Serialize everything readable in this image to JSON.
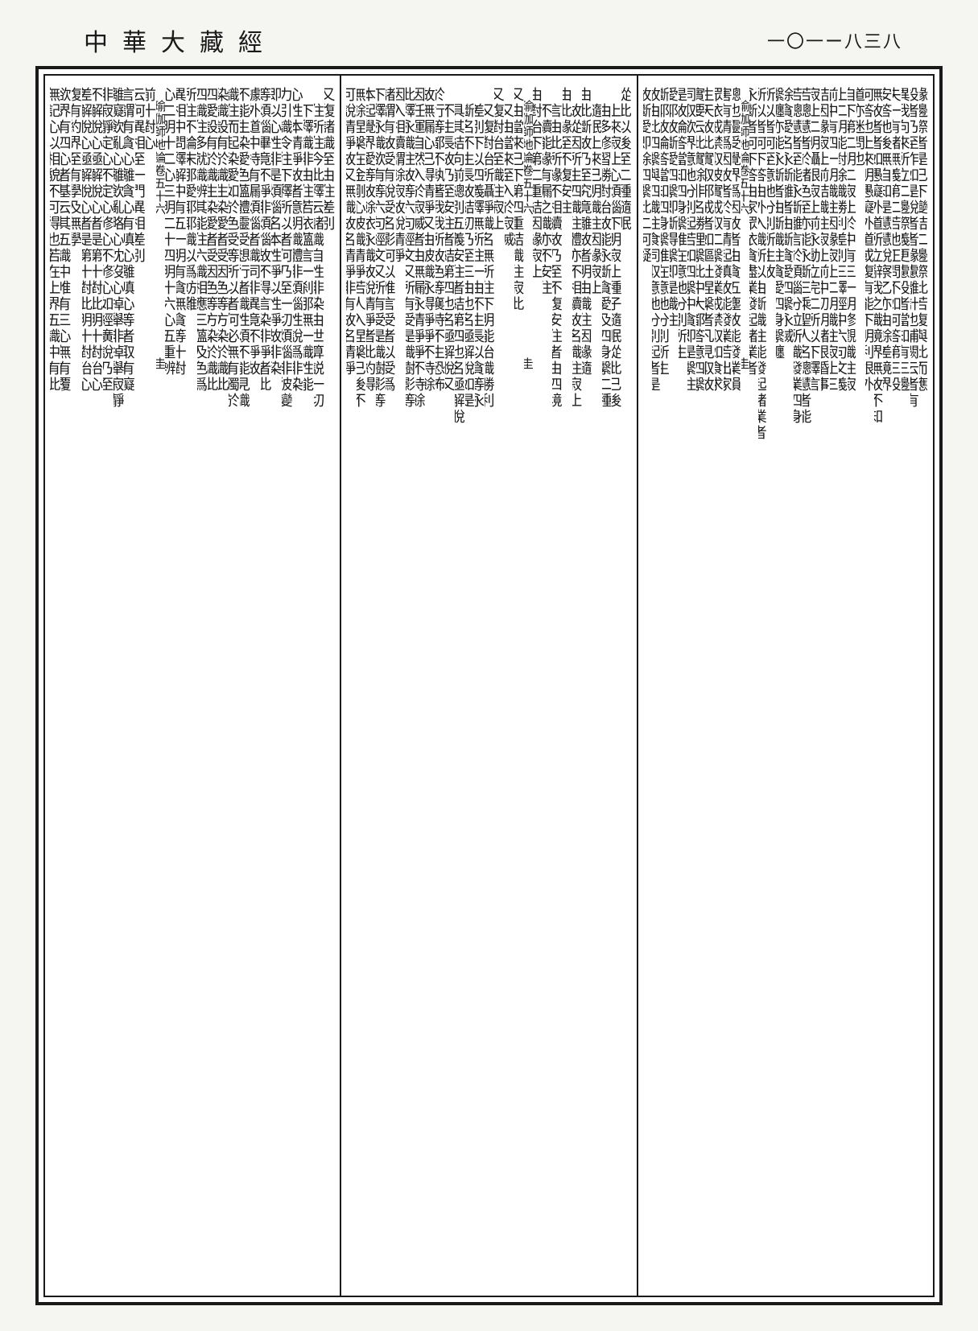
{
  "page": {
    "running_title": "中華大藏經",
    "page_number": "一〇一ー八三八",
    "layout": {
      "panels": 3,
      "orientation": "vertical-rl",
      "border_color": "#1a1a1a",
      "background_color": "#ffffff",
      "page_background": "#f5f5f2"
    },
    "panels": [
      {
        "id": "panel-right",
        "columns": [
          {
            "t": "緣邊際者是已下變結二邊際此若復與此而應"
          },
          {
            "t": "設者乃至作如是說者者緣慮離計也補闕云者有"
          },
          {
            "t": "異我向來所立二邊際義更慮設者當知有三邊"
          },
          {
            "t": "失一有諸無義第二若他正問不如何答第三設"
          },
          {
            "t": "安答他後無自知是慧慧說察乙亦由餘差境界"
          },
          {
            "t": "無故者者如愚癡外道所立辭我之識境界無故不知"
          },
          {
            "t": "何答也上來明愚癡外道或復有能下明利根外"
          },
          {
            "t": "道亦迷問也"
          },
          {
            "t": "自下第二明二寂止於中有三一明修觀識住寂"
          },
          {
            "t": "止二明能對除識勝利差別三釋經中六句文義"
          },
          {
            "t": "前中有四一明識住因緣寂止二明識住寂止三"
          },
          {
            "t": "結因緣寂止前結識住寂止前中初明諸根惛事"
          },
          {
            "t": "寂止二明躡眼寂止前永動立完二所以下釋言"
          },
          {
            "t": "若聰慧者於諸色至亦能永斷三乘聖人名聰慧者能"
          },
          {
            "t": "若聰慧者至能永斷離言於煩惱分位所識發業四身"
          },
          {
            "t": "除貪愛名永斷離者由斷貪愛四繫永滅"
          },
          {
            "t": "繫纏亦能永斷者由斷識住貪愛四身繫纏"
          },
          {
            "t": "所以者何至意地分別所生故"
          },
          {
            "t": "所以者何下答由外入識所以由斷識住能發起諸業者"
          },
          {
            "t": "永斷者何下答由家眾依貪盡業發起諸業者"
          },
          {
            "t": "",
            "cls": "title-col",
            "content_parts": [
              "　瑜伽師地論卷五十六",
              "　　　　　　　　　　　圭"
            ]
          },
          {
            "t": "總也靈受覺界爲因故者由貪五塵故能發業損"
          },
          {
            "t": "害有情爲因故者於有情起嗔故能發業若出家"
          },
          {
            "t": "眾依戒禁取彼實戒取二繫發業戒禁取如食求"
          },
          {
            "t": "生天故此實取邪戒者如嘔吐涅槃者凡見取故"
          },
          {
            "t": "實要云此實餘非名勝理繫此中大都答意四繫"
          },
          {
            "t": "同取欲界意地分別起若如四繫中貪即是繫住"
          },
          {
            "t": "是故論答當知四身繫唯在意地分別所生"
          },
          {
            "t": "愛耶故斷愛四繫即斷得繫即是識住"
          },
          {
            "t": "斷耶故論答當知四身繫唯在意地分別所生"
          },
          {
            "t": "故由此四繫與四識住食同取意地分別起者是"
          },
          {
            "t": "故斷愛即除四繫此二何疑"
          }
        ]
      },
      {
        "id": "panel-middle",
        "columns": [
          {
            "t": "從此以後至二種隨眠"
          },
          {
            "t": "　上來寂止心煩惱下明寂止種子隨眠從此已後"
          },
          {
            "t": "　由多修習勝對治故能永斷貪愛及四身繫二種"
          },
          {
            "t": "　隨眠上來已明識住因緣寂止"
          },
          {
            "t": "由此斷故乃至究竟離故者明由識住因緣隨"
          },
          {
            "t": "　故從因所生四識住體亦不相續故名識住寂止"
          },
          {
            "t": "由此緣至不復安住"
          },
          {
            "t": "　言由此所緣不相續故乃至不復安住者由四境"
          },
          {
            "t": "　不續能緣有漏之識亦不安住"
          },
          {
            "t": "由對治下第二重結因緣寂止"
          },
          {
            "t": "",
            "cls": "title-col",
            "content_parts": [
              "　瑜伽師地論卷五十六",
              "　　　　　　　　　　　圭"
            ]
          },
          {
            "t": "又由當來已下第四重結識住寂此"
          },
          {
            "t": "　又由當來至入於寂滅"
          },
          {
            "t": "又復對治至識住寂止"
          },
          {
            "t": "　又復對治所攝淨識名無所住下明能治識勝利"
          },
          {
            "t": "　差別下以四義釋無所住一由不生長以貪等永"
          },
          {
            "t": "　斷名不生長故結初乃至三由也名極解脫如是"
          },
          {
            "t": "　具其結向前總別五義安住者結第四也名極解脫"
          },
          {
            "t": "　不生長故乃至安住者結第四也名極解脫又"
          },
          {
            "t": "於行等都不執著我我所故色等襄時不生恐怖"
          },
          {
            "t": "故無漏心已得清淨又由彼識永得淨淨不待餘"
          },
          {
            "t": "因任運自然入於寂滅者由無漏永清淨淨不待餘"
          },
          {
            "t": "此釋永識住故等六句經文又所有受是識樹影等"
          },
          {
            "t": "因入相續謂餘寂故說清淨"
          },
          {
            "t": "諸謂有故受有說受名影何以唯言受者以受爲"
          },
          {
            "t": "下釋永識欲有等六句經文又所有受是識樹影等"
          },
          {
            "t": "本起覺界愛等故餘依永識故說清淨者此約得"
          },
          {
            "t": "無餘涅槃在金剛心彼識清淨若人入涅槃已後不"
          },
          {
            "t": "可說清淨故又無識故名清淨非有故名清淨"
          }
        ]
      },
      {
        "id": "panel-left",
        "columns": [
          {
            "t": "又復諸識至由住差別"
          },
          {
            "t": "　住所住今此釋云諸識自性非染由世算説一切"
          },
          {
            "t": "　下釋識非由住若依薀言一刹那無一識性能"
          },
          {
            "t": "心性本清淨故者意明識體非煩惱性說爲非染"
          },
          {
            "t": "力引識令往下釋所以者何乃至一切煩惱非彼變"
          },
          {
            "t": "即以心性非是煩惱名本性淨以性淨故非染"
          },
          {
            "t": "等煩惱畢竟不淨非煩惱故不得言染非淨者此"
          },
          {
            "t": "據外道中持有漏煩惱者識同非異竟不淨故"
          },
          {
            "t": "不能生染愛色薀體靈受想行者識性煩不能見識"
          },
          {
            "t": "識住而起染愛如於色受等所以者何必無有獨於"
          },
          {
            "t": "染識設有於識生染愛者受因色等方染於識此"
          },
          {
            "t": "四愛設有於識生染愛者受因色等方染於識此"
          },
          {
            "t": "四識住多就識辨其能住六識相應三薀及色爲"
          },
          {
            "t": "所住不論末那愛耶耶識以爲妨難"
          },
          {
            "t": "異相中問釋解中有五一明有貪無貪等十對"
          },
          {
            "t": "心二明十二心三明二十四明十六心五重辨"
          },
          {
            "t": "",
            "cls": "title-col",
            "content_parts": [
              "　瑜伽師地論卷五十六",
              "　　　　　　　　　　　圭"
            ]
          },
          {
            "t": "前十對心"
          },
          {
            "t": "云何異相至一門異相差別"
          },
          {
            "t": "言謂有貪心離貪心有嗔心離嗔心等者取有癡"
          },
          {
            "t": "離癡飲亂心離飲亂略心沈沒心掉舉非掉舉寂靜"
          },
          {
            "t": "非寂靜定心不定心修心不修心如經廣說乃至"
          },
          {
            "t": "不解脫心極解脫心者是第十對此明十對治心"
          },
          {
            "t": "差解脫心極解脫心者是第十對此明十對治心"
          },
          {
            "t": "復有約界至有學及無學"
          },
          {
            "t": "欲界有四心者基云其五識中唯有三心無有覆"
          },
          {
            "t": "無記心以相貌不可得也若在上界五識中有此"
          }
        ]
      }
    ]
  },
  "typography": {
    "main_fontsize": 18,
    "small_fontsize": 14,
    "title_fontsize": 15,
    "running_title_fontsize": 30,
    "page_number_fontsize": 22,
    "text_color": "#1a1a1a"
  }
}
